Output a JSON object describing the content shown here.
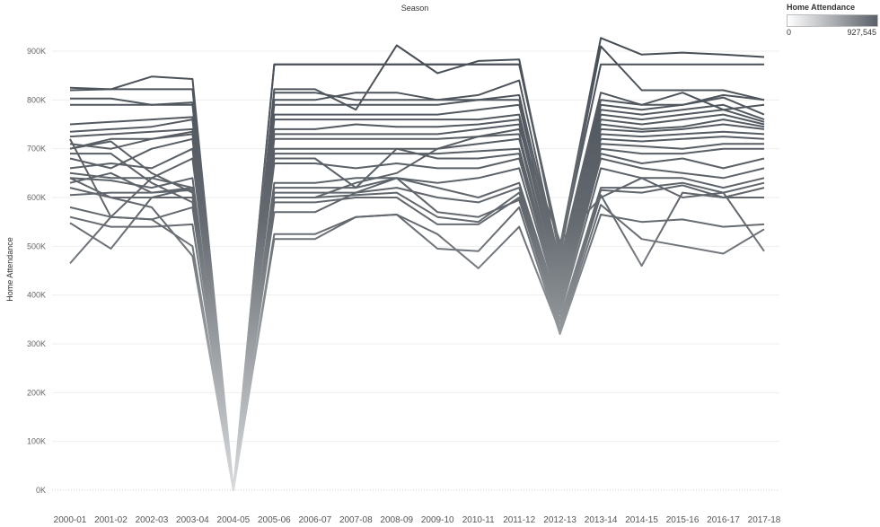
{
  "legend": {
    "title": "Home Attendance",
    "min_label": "0",
    "max_label": "927,545"
  },
  "chart_data": {
    "type": "line",
    "title": "Season",
    "xlabel": "",
    "ylabel": "Home Attendance",
    "ylim": [
      0,
      1000000
    ],
    "y_ticks": [
      0,
      100000,
      200000,
      300000,
      400000,
      500000,
      600000,
      700000,
      800000,
      900000
    ],
    "y_tick_labels": [
      "0K",
      "100K",
      "200K",
      "300K",
      "400K",
      "500K",
      "600K",
      "700K",
      "800K",
      "900K"
    ],
    "grid": true,
    "legend_position": "top-right",
    "color_scale": {
      "low": "#cfd1d3",
      "high": "#3f454d",
      "min": 0,
      "max": 927545
    },
    "categories": [
      "2000-01",
      "2001-02",
      "2002-03",
      "2003-04",
      "2004-05",
      "2005-06",
      "2006-07",
      "2007-08",
      "2008-09",
      "2009-10",
      "2010-11",
      "2011-12",
      "2012-13",
      "2013-14",
      "2014-15",
      "2015-16",
      "2016-17",
      "2017-18"
    ],
    "series": [
      {
        "values": [
          825000,
          822000,
          848000,
          843000,
          0,
          873000,
          873000,
          873000,
          873000,
          873000,
          873000,
          873000,
          500000,
          927000,
          893000,
          897000,
          893000,
          888000
        ]
      },
      {
        "values": [
          820000,
          822000,
          822000,
          822000,
          0,
          873000,
          873000,
          873000,
          873000,
          873000,
          873000,
          873000,
          490000,
          873000,
          873000,
          873000,
          873000,
          873000
        ]
      },
      {
        "values": [
          803000,
          803000,
          790000,
          795000,
          0,
          822000,
          822000,
          780000,
          912000,
          855000,
          880000,
          883000,
          480000,
          910000,
          820000,
          820000,
          820000,
          800000
        ]
      },
      {
        "values": [
          790000,
          790000,
          790000,
          790000,
          0,
          815000,
          815000,
          800000,
          800000,
          800000,
          800000,
          800000,
          470000,
          815000,
          790000,
          790000,
          810000,
          800000
        ]
      },
      {
        "values": [
          750000,
          755000,
          760000,
          765000,
          0,
          800000,
          800000,
          815000,
          815000,
          800000,
          810000,
          840000,
          460000,
          800000,
          790000,
          815000,
          780000,
          790000
        ]
      },
      {
        "values": [
          735000,
          740000,
          745000,
          760000,
          0,
          790000,
          790000,
          790000,
          790000,
          790000,
          800000,
          810000,
          450000,
          790000,
          780000,
          790000,
          805000,
          770000
        ]
      },
      {
        "values": [
          725000,
          730000,
          735000,
          740000,
          0,
          770000,
          770000,
          770000,
          770000,
          770000,
          780000,
          790000,
          440000,
          780000,
          770000,
          780000,
          790000,
          760000
        ]
      },
      {
        "values": [
          710000,
          700000,
          720000,
          735000,
          0,
          760000,
          760000,
          760000,
          760000,
          760000,
          760000,
          770000,
          430000,
          770000,
          760000,
          770000,
          780000,
          755000
        ]
      },
      {
        "values": [
          700000,
          720000,
          720000,
          730000,
          0,
          740000,
          740000,
          750000,
          745000,
          745000,
          750000,
          760000,
          420000,
          760000,
          750000,
          760000,
          770000,
          750000
        ]
      },
      {
        "values": [
          680000,
          660000,
          700000,
          720000,
          0,
          730000,
          730000,
          730000,
          730000,
          730000,
          740000,
          750000,
          410000,
          750000,
          740000,
          745000,
          760000,
          745000
        ]
      },
      {
        "values": [
          660000,
          670000,
          660000,
          700000,
          0,
          720000,
          720000,
          720000,
          720000,
          720000,
          725000,
          730000,
          400000,
          740000,
          735000,
          740000,
          750000,
          740000
        ]
      },
      {
        "values": [
          650000,
          640000,
          640000,
          680000,
          0,
          700000,
          700000,
          700000,
          700000,
          700000,
          710000,
          720000,
          395000,
          730000,
          725000,
          730000,
          735000,
          730000
        ]
      },
      {
        "values": [
          640000,
          635000,
          620000,
          640000,
          0,
          690000,
          690000,
          690000,
          690000,
          690000,
          695000,
          700000,
          390000,
          720000,
          715000,
          720000,
          725000,
          720000
        ]
      },
      {
        "values": [
          630000,
          650000,
          610000,
          620000,
          0,
          680000,
          680000,
          620000,
          700000,
          680000,
          680000,
          690000,
          385000,
          710000,
          705000,
          700000,
          710000,
          710000
        ]
      },
      {
        "values": [
          620000,
          600000,
          600000,
          600000,
          0,
          670000,
          670000,
          660000,
          670000,
          660000,
          660000,
          680000,
          380000,
          700000,
          690000,
          690000,
          700000,
          700000
        ]
      },
      {
        "values": [
          605000,
          610000,
          610000,
          615000,
          0,
          630000,
          630000,
          640000,
          640000,
          630000,
          640000,
          660000,
          375000,
          690000,
          670000,
          680000,
          660000,
          680000
        ]
      },
      {
        "values": [
          580000,
          560000,
          555000,
          580000,
          0,
          620000,
          620000,
          620000,
          640000,
          620000,
          600000,
          630000,
          370000,
          680000,
          660000,
          650000,
          640000,
          660000
        ]
      },
      {
        "values": [
          560000,
          540000,
          540000,
          545000,
          0,
          610000,
          610000,
          610000,
          620000,
          600000,
          590000,
          620000,
          360000,
          660000,
          640000,
          640000,
          620000,
          640000
        ]
      },
      {
        "values": [
          548000,
          495000,
          600000,
          620000,
          0,
          600000,
          600000,
          605000,
          610000,
          560000,
          550000,
          610000,
          350000,
          620000,
          620000,
          630000,
          610000,
          630000
        ]
      },
      {
        "values": [
          465000,
          560000,
          555000,
          500000,
          0,
          590000,
          590000,
          600000,
          600000,
          545000,
          545000,
          600000,
          340000,
          615000,
          610000,
          625000,
          600000,
          620000
        ]
      },
      {
        "values": [
          700000,
          715000,
          650000,
          610000,
          0,
          570000,
          570000,
          610000,
          640000,
          570000,
          560000,
          595000,
          330000,
          605000,
          460000,
          610000,
          600000,
          600000
        ]
      },
      {
        "values": [
          690000,
          690000,
          630000,
          590000,
          0,
          525000,
          525000,
          560000,
          565000,
          495000,
          490000,
          580000,
          320000,
          565000,
          550000,
          555000,
          540000,
          545000
        ]
      },
      {
        "values": [
          640000,
          600000,
          580000,
          480000,
          0,
          515000,
          515000,
          560000,
          565000,
          525000,
          455000,
          540000,
          325000,
          585000,
          515000,
          500000,
          485000,
          535000
        ]
      },
      {
        "values": [
          720000,
          560000,
          640000,
          620000,
          0,
          600000,
          600000,
          630000,
          650000,
          700000,
          725000,
          740000,
          510000,
          600000,
          640000,
          600000,
          610000,
          490000
        ]
      }
    ]
  }
}
